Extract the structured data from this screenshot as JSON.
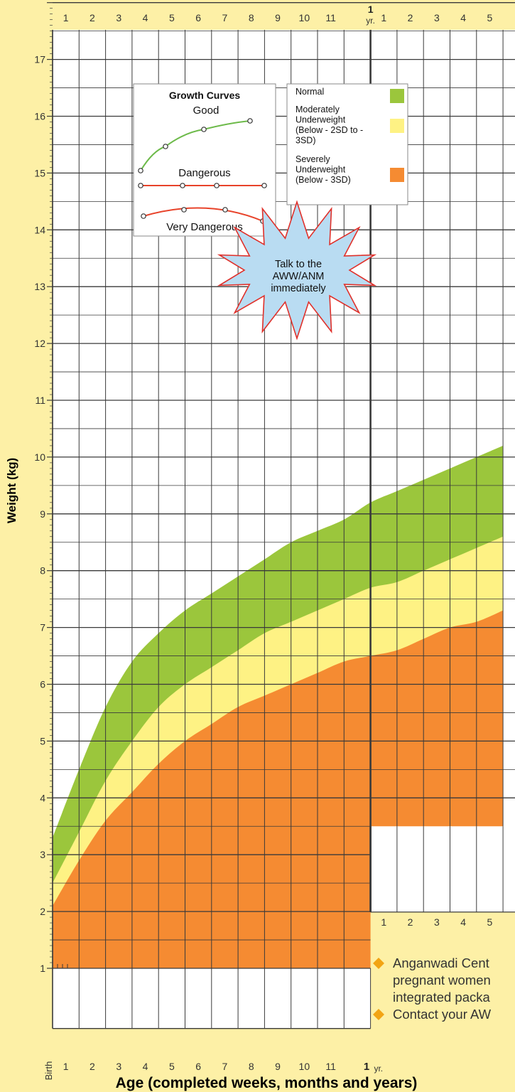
{
  "top_axis": {
    "months": [
      "1",
      "2",
      "3",
      "4",
      "5",
      "6",
      "7",
      "8",
      "9",
      "10",
      "11"
    ],
    "year_marker": "1",
    "year_unit": "yr.",
    "months_after_year": [
      "1",
      "2",
      "3",
      "4",
      "5"
    ]
  },
  "y_axis": {
    "label": "Weight (kg)",
    "ticks": [
      "1",
      "2",
      "3",
      "4",
      "5",
      "6",
      "7",
      "8",
      "9",
      "10",
      "11",
      "12",
      "13",
      "14",
      "15",
      "16",
      "17"
    ]
  },
  "bottom_axis": {
    "birth_label": "Birth",
    "months": [
      "1",
      "2",
      "3",
      "4",
      "5",
      "6",
      "7",
      "8",
      "9",
      "10",
      "11"
    ],
    "year_marker": "1",
    "year_unit": "yr.",
    "title": "Age (completed weeks, months and years)"
  },
  "inner_axis": {
    "months": [
      "1",
      "2",
      "3",
      "4",
      "5"
    ]
  },
  "legend_curves": {
    "title": "Growth Curves",
    "good": "Good",
    "dangerous": "Dangerous",
    "very_dangerous": "Very Dangerous"
  },
  "legend_bands": [
    {
      "label_lines": [
        "Normal"
      ],
      "color": "#9bc63c"
    },
    {
      "label_lines": [
        "Moderately",
        "Underweight",
        "(Below - 2SD to -",
        "3SD)"
      ],
      "color": "#fef284"
    },
    {
      "label_lines": [
        "Severely",
        "Underweight",
        "(Below - 3SD)"
      ],
      "color": "#f58b32"
    }
  ],
  "callout": {
    "lines": [
      "Talk to the",
      "AWW/ANM",
      "immediately"
    ]
  },
  "notes": {
    "bullet1_lines": [
      "Anganwadi Cent",
      "pregnant women",
      "integrated packa"
    ],
    "bullet2_lines": [
      "Contact your AW"
    ]
  },
  "colors": {
    "background": "#fdf0a6",
    "normal": "#9bc63c",
    "moderate": "#fef284",
    "severe": "#f58b32",
    "grid": "#3a3a3a",
    "curve_good": "#6dba4a",
    "curve_danger": "#e8432a",
    "callout": "#b9dcf2",
    "bullet": "#f2a414"
  },
  "chart_data": {
    "type": "area",
    "xlabel": "Age (completed weeks, months and years)",
    "ylabel": "Weight (kg)",
    "x_unit": "months",
    "xlim": [
      0,
      17
    ],
    "ylim": [
      1,
      18
    ],
    "x": [
      0,
      1,
      2,
      3,
      4,
      5,
      6,
      7,
      8,
      9,
      10,
      11,
      12,
      13,
      14,
      15,
      16,
      17
    ],
    "series": [
      {
        "name": "Normal",
        "values": [
          3.3,
          4.5,
          5.6,
          6.4,
          6.9,
          7.3,
          7.6,
          7.9,
          8.2,
          8.5,
          8.7,
          8.9,
          9.2,
          9.4,
          9.6,
          9.8,
          10.0,
          10.2
        ]
      },
      {
        "name": "Moderately Underweight",
        "values": [
          2.5,
          3.4,
          4.3,
          5.0,
          5.6,
          6.0,
          6.3,
          6.6,
          6.9,
          7.1,
          7.3,
          7.5,
          7.7,
          7.8,
          8.0,
          8.2,
          8.4,
          8.6
        ]
      },
      {
        "name": "Severely Underweight",
        "values": [
          2.1,
          2.9,
          3.6,
          4.1,
          4.6,
          5.0,
          5.3,
          5.6,
          5.8,
          6.0,
          6.2,
          6.4,
          6.5,
          6.6,
          6.8,
          7.0,
          7.1,
          7.3
        ]
      }
    ],
    "legend": [
      "Normal",
      "Moderately Underweight (Below - 2SD to -3SD)",
      "Severely Underweight (Below - 3SD)"
    ]
  }
}
